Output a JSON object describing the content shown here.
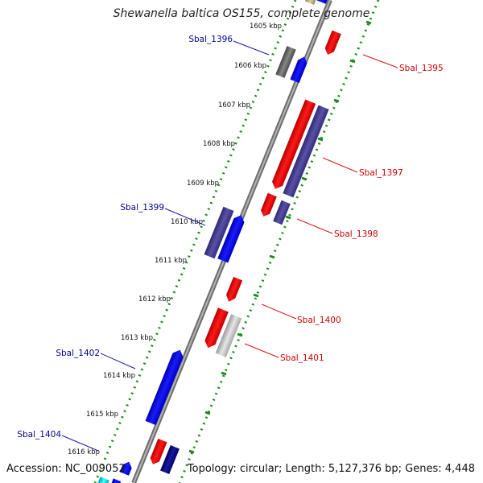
{
  "title": "Shewanella baltica OS155, complete genome",
  "accession": "Accession: NC_009052",
  "summary": "Topology: circular; Length: 5,127,376 bp; Genes: 4,448",
  "colors": {
    "backbone": "#8c8c8c",
    "ruler": "#1e8a1e",
    "label_forward": "#00008b",
    "label_reverse": "#cc0000"
  },
  "ticks": [
    "1605 kbp",
    "1606 kbp",
    "1607 kbp",
    "1608 kbp",
    "1609 kbp",
    "1610 kbp",
    "1611 kbp",
    "1612 kbp",
    "1613 kbp",
    "1614 kbp",
    "1615 kbp",
    "1616 kbp"
  ],
  "labels": {
    "Sbal_1395": "Sbal_1395",
    "Sbal_1396": "Sbal_1396",
    "Sbal_1397": "Sbal_1397",
    "Sbal_1398": "Sbal_1398",
    "Sbal_1399": "Sbal_1399",
    "Sbal_1400": "Sbal_1400",
    "Sbal_1401": "Sbal_1401",
    "Sbal_1402": "Sbal_1402",
    "Sbal_1404": "Sbal_1404"
  }
}
